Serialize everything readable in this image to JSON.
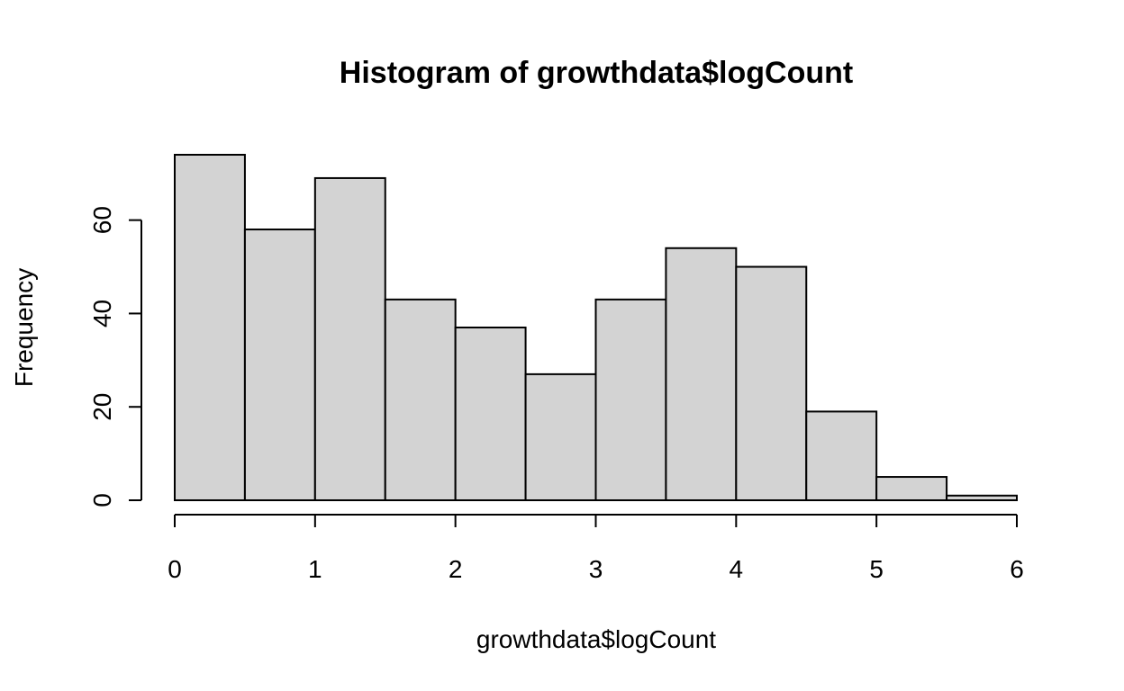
{
  "chart_data": {
    "type": "bar",
    "title": "Histogram of growthdata$logCount",
    "xlabel": "growthdata$logCount",
    "ylabel": "Frequency",
    "bin_edges": [
      0,
      0.5,
      1,
      1.5,
      2,
      2.5,
      3,
      3.5,
      4,
      4.5,
      5,
      5.5,
      6
    ],
    "values": [
      74,
      58,
      69,
      43,
      37,
      27,
      43,
      54,
      50,
      19,
      5,
      1
    ],
    "xlim": [
      0,
      6
    ],
    "ylim": [
      0,
      74
    ],
    "x_ticks": [
      0,
      1,
      2,
      3,
      4,
      5,
      6
    ],
    "y_ticks": [
      0,
      20,
      40,
      60
    ],
    "bar_color": "#d3d3d3",
    "grid": false,
    "legend": "none"
  }
}
